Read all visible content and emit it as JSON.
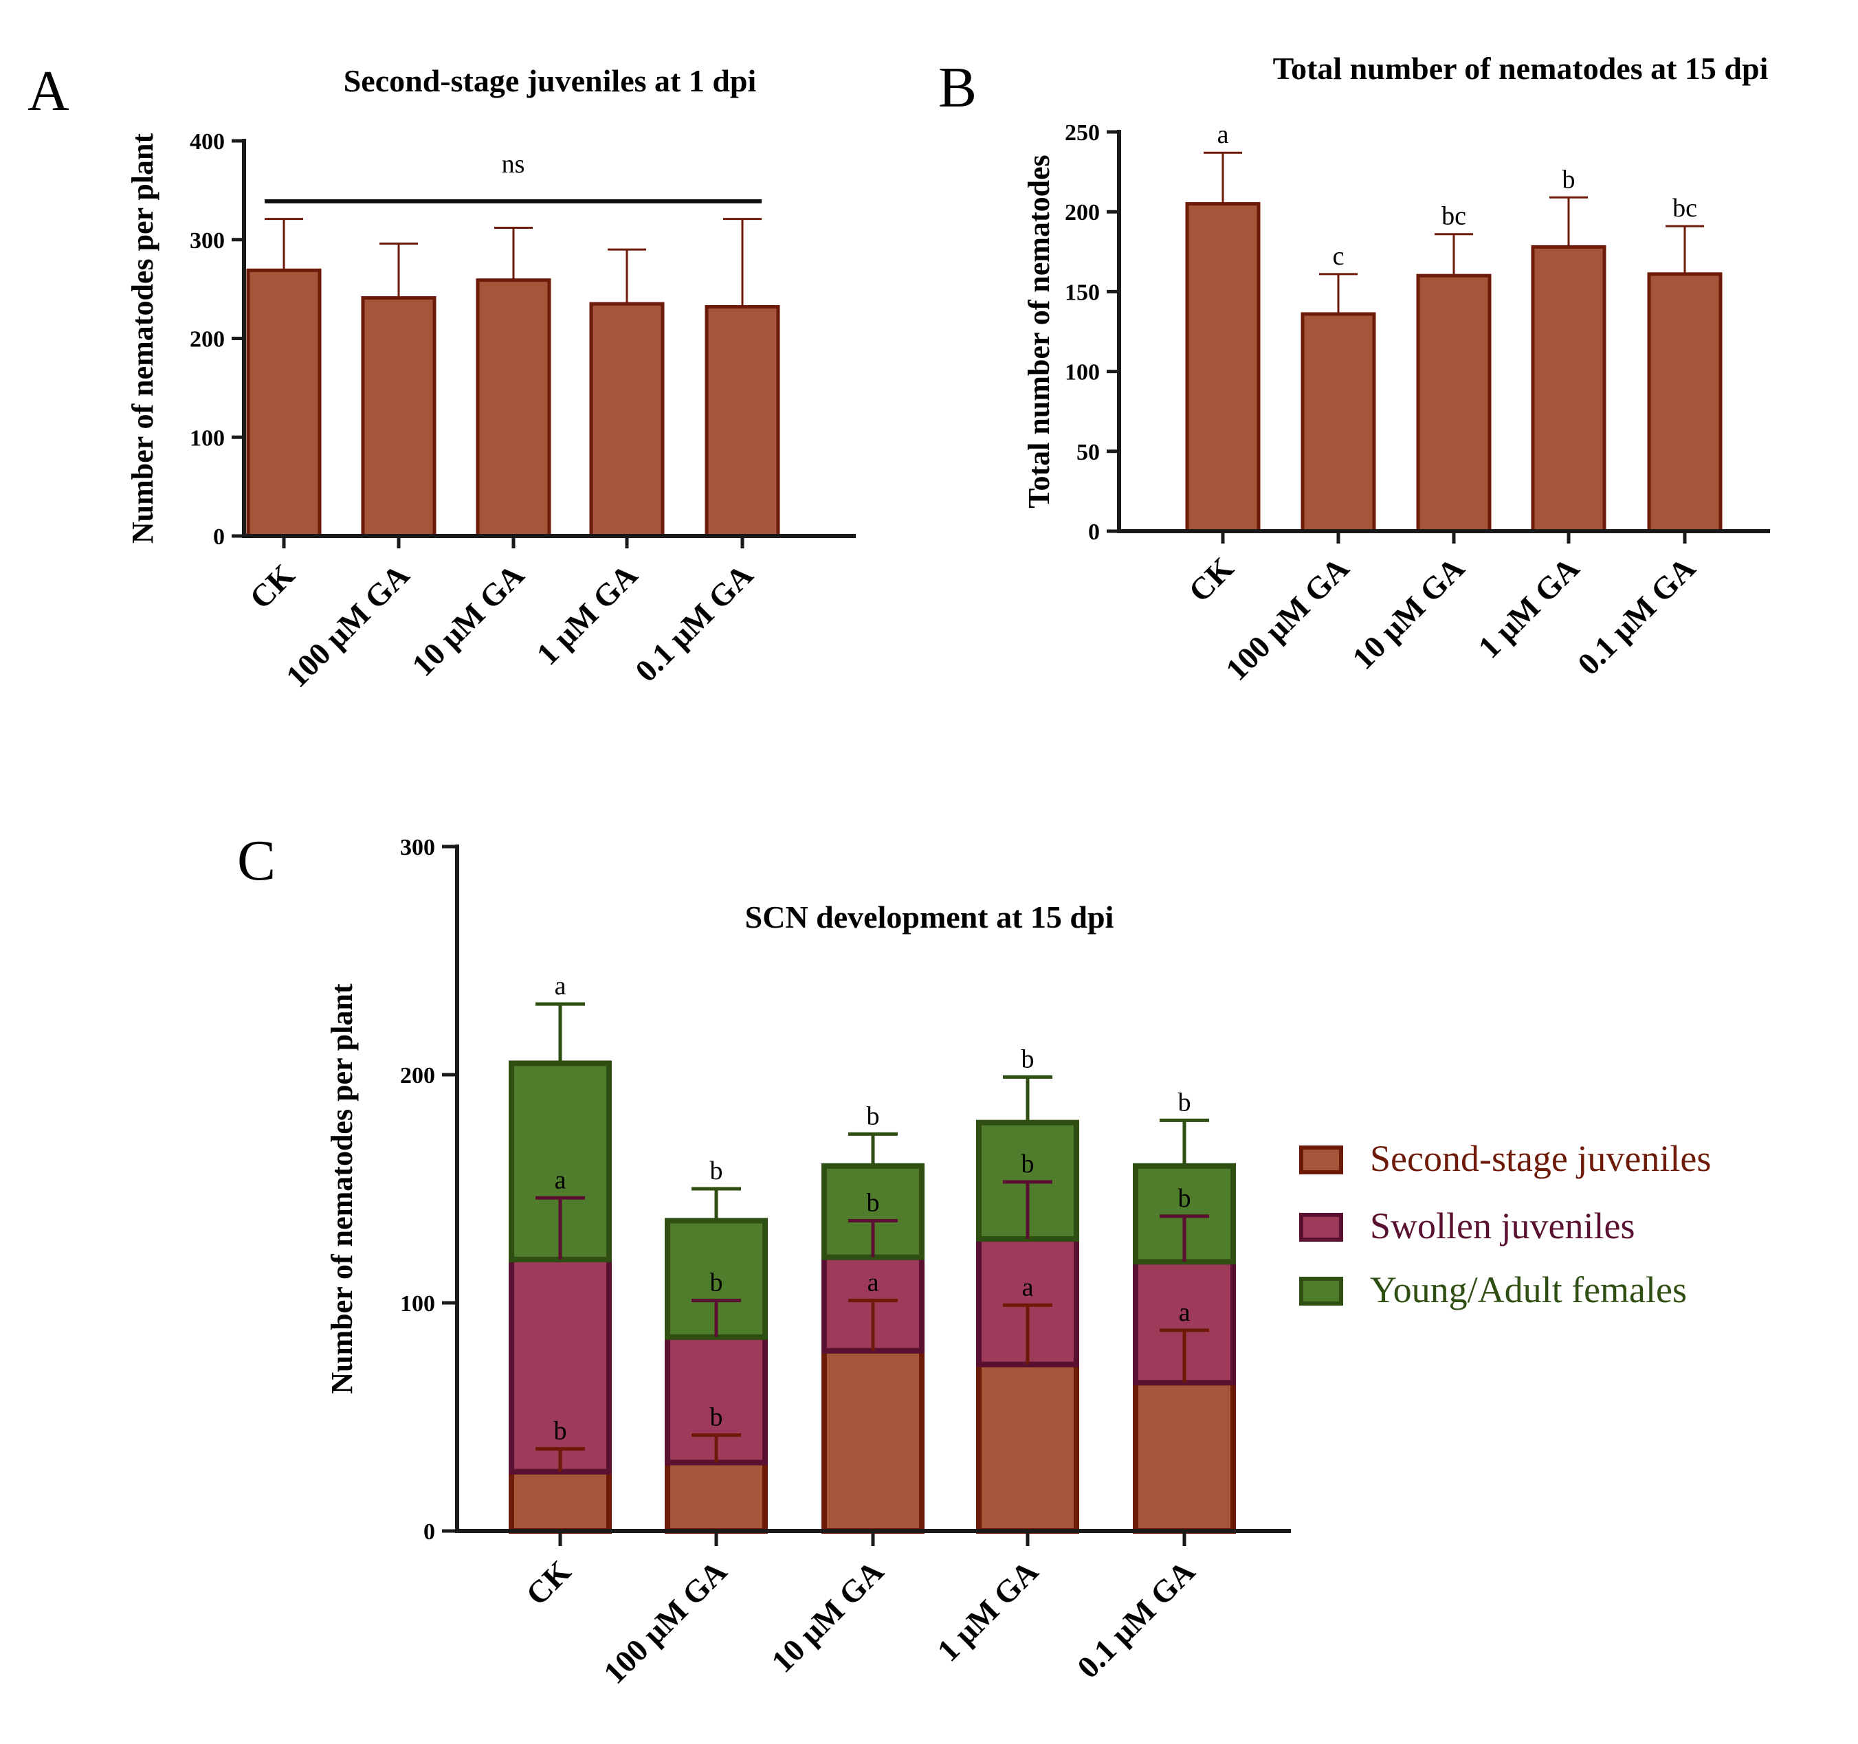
{
  "colors": {
    "brown_fill": "#a5553a",
    "brown_stroke": "#6e1a08",
    "magenta_fill": "#9e3a5a",
    "magenta_stroke": "#5a1030",
    "green_fill": "#4f7d2c",
    "green_stroke": "#2f4e12",
    "axis": "#1a1a1a"
  },
  "chart_data": [
    {
      "panel": "A",
      "type": "bar",
      "title": "Second-stage juveniles at 1 dpi",
      "xlabel": "",
      "ylabel": "Number of nematodes per plant",
      "ylim": [
        0,
        400
      ],
      "yticks": [
        0,
        100,
        200,
        300,
        400
      ],
      "categories": [
        "CK",
        "100 μM GA",
        "10 μM GA",
        "1 μM GA",
        "0.1 μM GA"
      ],
      "values": [
        269,
        241,
        259,
        235,
        232
      ],
      "errors": [
        52,
        55,
        53,
        55,
        89
      ],
      "significance_line": {
        "from": "CK",
        "to": "0.1 μM GA",
        "label": "ns"
      },
      "letters": []
    },
    {
      "panel": "B",
      "type": "bar",
      "title": "Total number of nematodes at 15 dpi",
      "xlabel": "",
      "ylabel": "Total number of nematodes",
      "ylim": [
        0,
        250
      ],
      "yticks": [
        0,
        50,
        100,
        150,
        200,
        250
      ],
      "categories": [
        "CK",
        "100 μM GA",
        "10 μM GA",
        "1 μM GA",
        "0.1 μM GA"
      ],
      "values": [
        205,
        136,
        160,
        178,
        161
      ],
      "errors": [
        32,
        25,
        26,
        31,
        30
      ],
      "letters": [
        "a",
        "c",
        "bc",
        "b",
        "bc"
      ]
    },
    {
      "panel": "C",
      "type": "bar",
      "stacked": true,
      "title": "SCN development at 15 dpi",
      "xlabel": "",
      "ylabel": "Number of nematodes per plant",
      "ylim": [
        0,
        300
      ],
      "yticks": [
        0,
        100,
        200,
        300
      ],
      "categories": [
        "CK",
        "100 μM GA",
        "10 μM GA",
        "1 μM GA",
        "0.1 μM GA"
      ],
      "series": [
        {
          "name": "Second-stage juveniles",
          "values": [
            26,
            30,
            79,
            73,
            65
          ],
          "errors": [
            10,
            12,
            22,
            26,
            23
          ],
          "letters": [
            "b",
            "b",
            "a",
            "a",
            "a"
          ]
        },
        {
          "name": "Swollen juveniles",
          "values": [
            93,
            55,
            41,
            55,
            53
          ],
          "errors": [
            27,
            16,
            16,
            25,
            20
          ],
          "letters": [
            "a",
            "b",
            "b",
            "b",
            "b"
          ]
        },
        {
          "name": "Young/Adult females",
          "values": [
            86,
            51,
            40,
            51,
            42
          ],
          "errors": [
            26,
            14,
            14,
            20,
            20
          ],
          "letters": [
            "a",
            "b",
            "b",
            "b",
            "b"
          ]
        }
      ],
      "legend": "right"
    }
  ]
}
